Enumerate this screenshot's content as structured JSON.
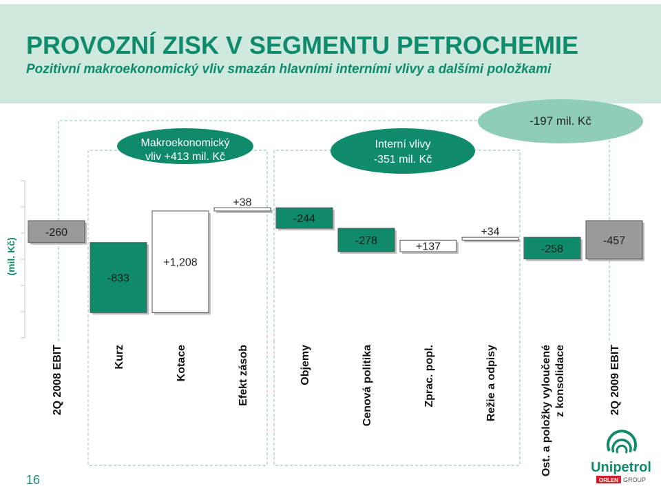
{
  "header": {
    "title": "PROVOZNÍ ZISK V SEGMENTU PETROCHEMIE",
    "subtitle": "Pozitivní makroekonomický vliv smazán hlavními interními vlivy a dalšími položkami"
  },
  "callouts": {
    "macro_line1": "Makroekonomický",
    "macro_line2": "vliv +413 mil. Kč",
    "internal_line1": "Interní vlivy",
    "internal_line2": "-351 mil. Kč",
    "total": "-197 mil. Kč"
  },
  "chart_data": {
    "type": "waterfall",
    "ylabel": "(mil. Kč)",
    "categories": [
      "2Q 2008 EBIT",
      "Kurz",
      "Kotace",
      "Efekt zásob",
      "Objemy",
      "Cenová politika",
      "Zprac. popl.",
      "Režie a odpisy",
      "Ost. a položky vyloučené z konsolidace",
      "2Q 2009 EBIT"
    ],
    "values": [
      -260,
      -833,
      1208,
      38,
      -244,
      -278,
      137,
      34,
      -258,
      -457
    ],
    "labels": [
      "-260",
      "-833",
      "+1,208",
      "+38",
      "-244",
      "-278",
      "+137",
      "+34",
      "-258",
      "-457"
    ],
    "colors": {
      "negative": "#0f8a6a",
      "positive": "#ffffff",
      "total": "#9a9a9a"
    }
  },
  "footer": {
    "page_number": "16",
    "brand": "Unipetrol",
    "group_badge": "ORLEN",
    "group_suffix": "GROUP"
  }
}
